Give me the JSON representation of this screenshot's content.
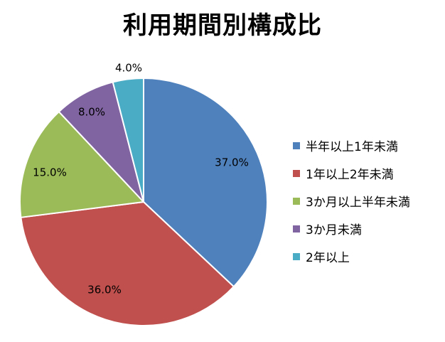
{
  "chart_data": {
    "type": "pie",
    "title": "利用期間別構成比",
    "categories": [
      "半年以上1年未満",
      "1年以上2年未満",
      "3か月以上半年未満",
      "3か月未満",
      "2年以上"
    ],
    "values": [
      37.0,
      36.0,
      15.0,
      8.0,
      4.0
    ],
    "data_labels": [
      "37.0%",
      "36.0%",
      "15.0%",
      "8.0%",
      "4.0%"
    ],
    "colors": [
      "#4F81BD",
      "#C0504D",
      "#9BBB59",
      "#8064A2",
      "#4BACC6"
    ],
    "start_angle_deg": 0,
    "direction": "clockwise",
    "legend_position": "right"
  }
}
